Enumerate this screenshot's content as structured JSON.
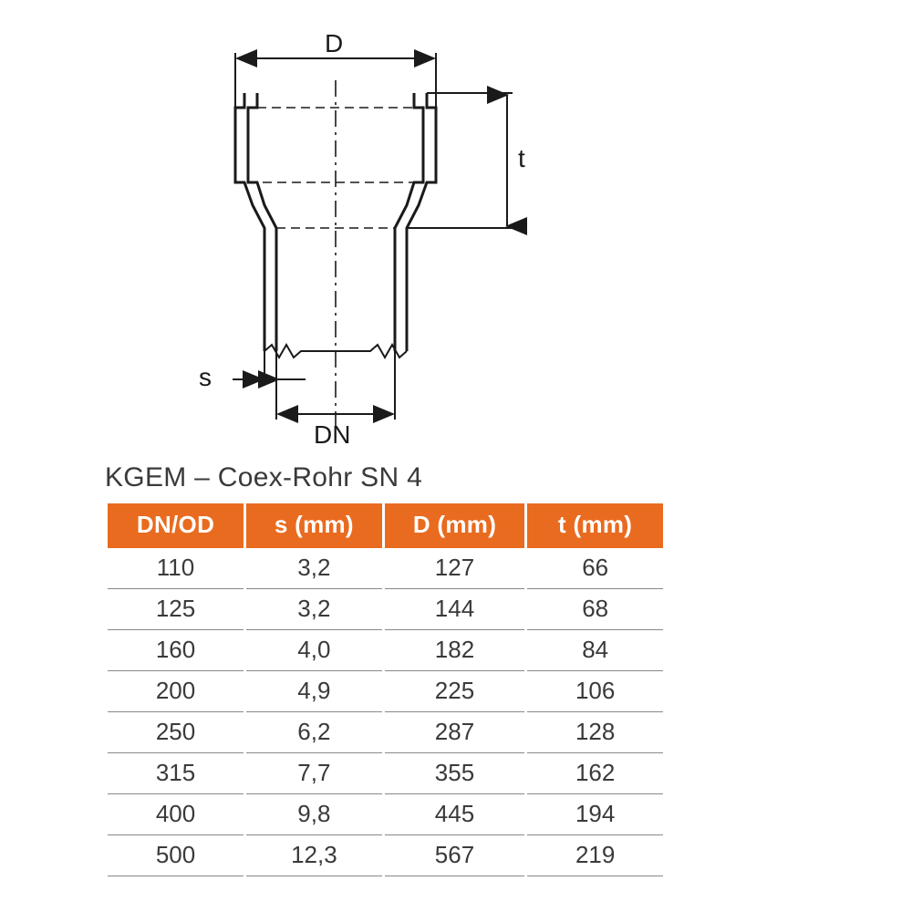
{
  "diagram": {
    "labels": {
      "D": "D",
      "t": "t",
      "s": "s",
      "DN": "DN"
    },
    "stroke_color": "#1a1a1a",
    "stroke_width_outline": 3,
    "stroke_width_dim": 2,
    "dash_pattern": "14 6 3 6",
    "label_fontsize": 28
  },
  "table": {
    "title": "KGEM – Coex-Rohr SN 4",
    "header_bg": "#e96b1f",
    "header_fg": "#ffffff",
    "row_border": "#888888",
    "text_color": "#3a3a3a",
    "header_fontsize": 26,
    "cell_fontsize": 26,
    "columns": [
      "DN/OD",
      "s (mm)",
      "D (mm)",
      "t (mm)"
    ],
    "rows": [
      [
        "110",
        "3,2",
        "127",
        "66"
      ],
      [
        "125",
        "3,2",
        "144",
        "68"
      ],
      [
        "160",
        "4,0",
        "182",
        "84"
      ],
      [
        "200",
        "4,9",
        "225",
        "106"
      ],
      [
        "250",
        "6,2",
        "287",
        "128"
      ],
      [
        "315",
        "7,7",
        "355",
        "162"
      ],
      [
        "400",
        "9,8",
        "445",
        "194"
      ],
      [
        "500",
        "12,3",
        "567",
        "219"
      ]
    ]
  }
}
